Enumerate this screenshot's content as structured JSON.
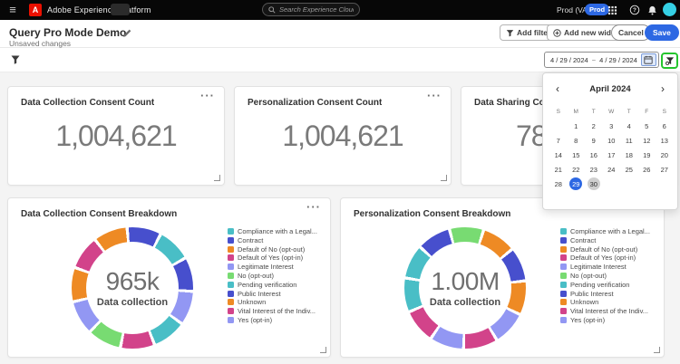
{
  "icons": {
    "menu": "≡",
    "adobe_logo_letter": "A",
    "more": "···",
    "chevron_left": "‹",
    "chevron_right": "›",
    "help": "?"
  },
  "topbar": {
    "app_title": "Adobe Experience Platform",
    "search": {
      "placeholder": "Search Experience Cloud (⌘+/)"
    },
    "environment_label": "Prod (VA7)",
    "environment_badge": "Prod"
  },
  "header": {
    "title": "Query Pro Mode Demo",
    "subtitle": "Unsaved changes",
    "buttons": {
      "add_filter": "Add filter",
      "add_new_widget": "Add new widget",
      "cancel": "Cancel",
      "save": "Save"
    }
  },
  "filter_bar": {
    "date_start": "4 / 29 / 2024",
    "date_separator": "~",
    "date_end": "4 / 29 / 2024"
  },
  "calendar": {
    "month_label": "April 2024",
    "weekdays": [
      "S",
      "M",
      "T",
      "W",
      "T",
      "F",
      "S"
    ],
    "cells": [
      "",
      1,
      2,
      3,
      4,
      5,
      6,
      7,
      8,
      9,
      10,
      11,
      12,
      13,
      14,
      15,
      16,
      17,
      18,
      19,
      20,
      21,
      22,
      23,
      24,
      25,
      26,
      27,
      28,
      29,
      30,
      "",
      "",
      "",
      ""
    ],
    "selected_day": 29,
    "today_day": 30
  },
  "stat_cards": [
    {
      "title": "Data Collection Consent Count",
      "value": "1,004,621"
    },
    {
      "title": "Personalization Consent Count",
      "value": "1,004,621"
    },
    {
      "title": "Data Sharing Consent",
      "value": "78"
    }
  ],
  "palette": {
    "teal": "#49BEC6",
    "indigo": "#474FCD",
    "orange": "#EE8A24",
    "magenta": "#D2438A",
    "lavender": "#9297F3",
    "green": "#78DB72"
  },
  "accent": {
    "blue": "#2D68E3",
    "highlight_green": "#25C52E",
    "avatar_cyan": "#35CFE3",
    "adobe_red": "#EB1000"
  },
  "chart_data": [
    {
      "type": "pie",
      "title": "Data Collection Consent Breakdown",
      "center_value": "965k",
      "center_label": "Data collection",
      "total": "965k",
      "start_angle_deg": -5,
      "segments_note": "11 visually equal donut segments, colors listed clockwise from 12 o'clock",
      "segments": [
        "indigo",
        "teal",
        "indigo",
        "lavender",
        "teal",
        "magenta",
        "green",
        "lavender",
        "orange",
        "magenta",
        "orange"
      ],
      "legend_position": "right",
      "legend": [
        {
          "label": "Compliance with a Legal...",
          "color": "teal"
        },
        {
          "label": "Contract",
          "color": "indigo"
        },
        {
          "label": "Default of No (opt-out)",
          "color": "orange"
        },
        {
          "label": "Default of Yes (opt-in)",
          "color": "magenta"
        },
        {
          "label": "Legitimate Interest",
          "color": "lavender"
        },
        {
          "label": "No (opt-out)",
          "color": "green"
        },
        {
          "label": "Pending verification",
          "color": "teal"
        },
        {
          "label": "Public Interest",
          "color": "indigo"
        },
        {
          "label": "Unknown",
          "color": "orange"
        },
        {
          "label": "Vital Interest of the Indiv...",
          "color": "magenta"
        },
        {
          "label": "Yes (opt-in)",
          "color": "lavender"
        }
      ]
    },
    {
      "type": "pie",
      "title": "Personalization Consent Breakdown",
      "center_value": "1.00M",
      "center_label": "Data collection",
      "total": "1.00M",
      "start_angle_deg": -15,
      "segments_note": "11 visually equal donut segments, colors listed clockwise from 12 o'clock",
      "segments": [
        "green",
        "orange",
        "indigo",
        "orange",
        "lavender",
        "magenta",
        "lavender",
        "magenta",
        "teal",
        "teal",
        "indigo"
      ],
      "legend_position": "right",
      "legend": [
        {
          "label": "Compliance with a Legal...",
          "color": "teal"
        },
        {
          "label": "Contract",
          "color": "indigo"
        },
        {
          "label": "Default of No (opt-out)",
          "color": "orange"
        },
        {
          "label": "Default of Yes (opt-in)",
          "color": "magenta"
        },
        {
          "label": "Legitimate Interest",
          "color": "lavender"
        },
        {
          "label": "No (opt-out)",
          "color": "green"
        },
        {
          "label": "Pending verification",
          "color": "teal"
        },
        {
          "label": "Public Interest",
          "color": "indigo"
        },
        {
          "label": "Unknown",
          "color": "orange"
        },
        {
          "label": "Vital Interest of the Indiv...",
          "color": "magenta"
        },
        {
          "label": "Yes (opt-in)",
          "color": "lavender"
        }
      ]
    }
  ]
}
